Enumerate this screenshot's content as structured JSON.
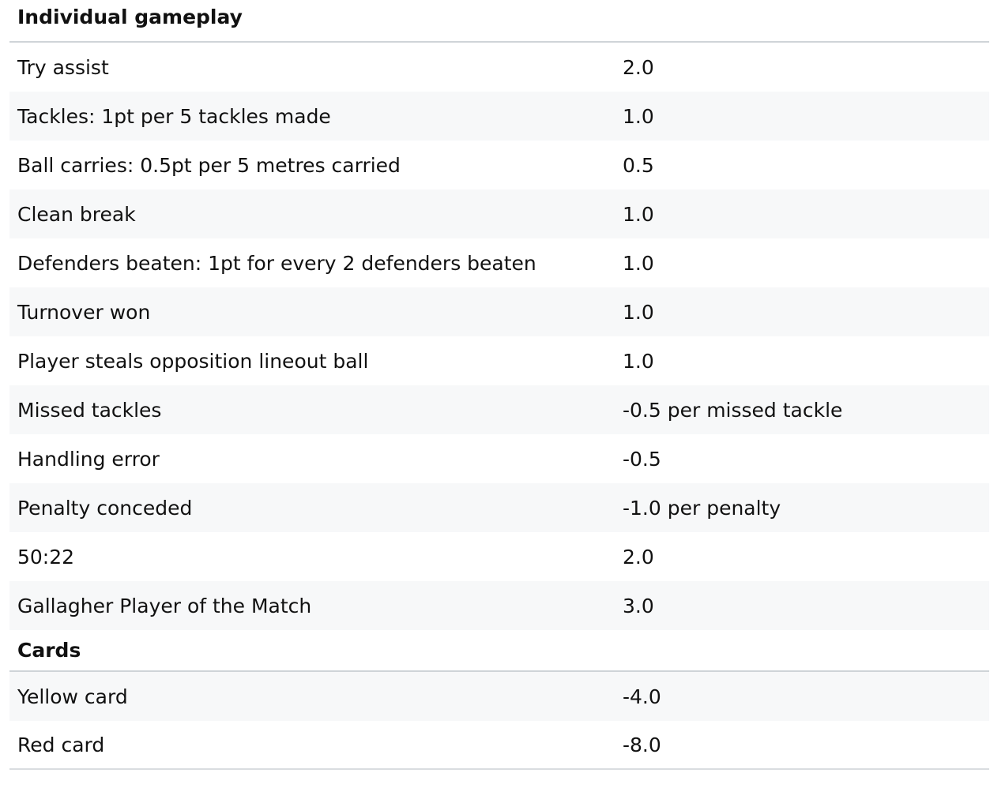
{
  "sections": [
    {
      "title": "Individual gameplay",
      "rows": [
        {
          "label": "Try assist",
          "value": "2.0"
        },
        {
          "label": "Tackles: 1pt per 5 tackles made",
          "value": "1.0"
        },
        {
          "label": "Ball carries: 0.5pt per 5 metres carried",
          "value": "0.5"
        },
        {
          "label": "Clean break",
          "value": "1.0"
        },
        {
          "label": "Defenders beaten: 1pt for every 2 defenders beaten",
          "value": "1.0"
        },
        {
          "label": "Turnover won",
          "value": "1.0"
        },
        {
          "label": "Player steals opposition lineout ball",
          "value": "1.0"
        },
        {
          "label": "Missed tackles",
          "value": "-0.5 per missed tackle"
        },
        {
          "label": "Handling error",
          "value": "-0.5"
        },
        {
          "label": "Penalty conceded",
          "value": "-1.0 per penalty"
        },
        {
          "label": "50:22",
          "value": "2.0"
        },
        {
          "label": "Gallagher Player of the Match",
          "value": "3.0"
        }
      ]
    },
    {
      "title": "Cards",
      "rows": [
        {
          "label": "Yellow card",
          "value": "-4.0"
        },
        {
          "label": "Red card",
          "value": "-8.0"
        }
      ]
    }
  ]
}
